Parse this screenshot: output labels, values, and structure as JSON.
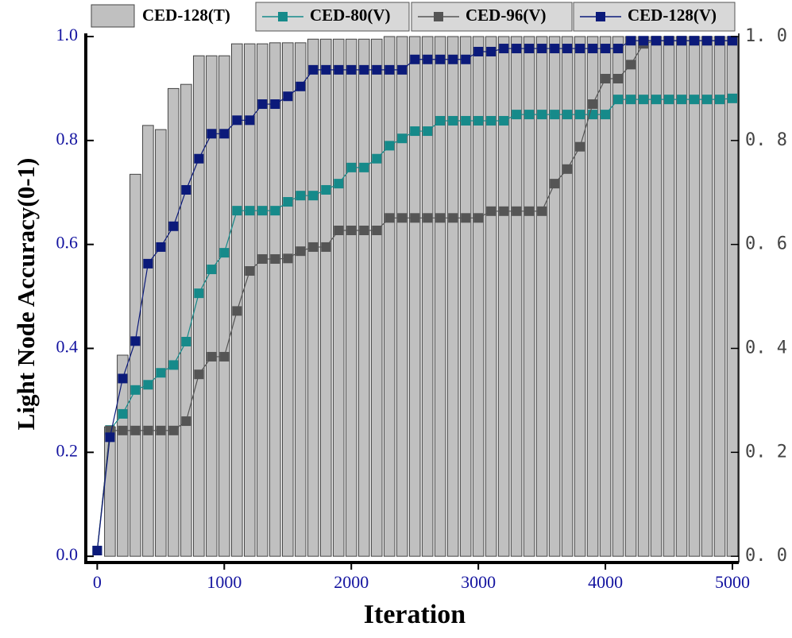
{
  "chart_data": {
    "type": "combo",
    "xlabel": "Iteration",
    "ylabel": "Light Node Accuracy(0-1)",
    "x": [
      0,
      100,
      200,
      300,
      400,
      500,
      600,
      700,
      800,
      900,
      1000,
      1100,
      1200,
      1300,
      1400,
      1500,
      1600,
      1700,
      1800,
      1900,
      2000,
      2100,
      2200,
      2300,
      2400,
      2500,
      2600,
      2700,
      2800,
      2900,
      3000,
      3100,
      3200,
      3300,
      3400,
      3500,
      3600,
      3700,
      3800,
      3900,
      4000,
      4100,
      4200,
      4300,
      4400,
      4500,
      4600,
      4700,
      4800,
      4900,
      5000
    ],
    "xlim": [
      -90,
      5050
    ],
    "xticks": [
      0,
      1000,
      2000,
      3000,
      4000,
      5000
    ],
    "ylim": [
      -0.012,
      1.0
    ],
    "yticks": [
      {
        "value": 0,
        "label": "0.0"
      },
      0.2,
      0.4,
      0.6,
      0.8,
      {
        "value": 1,
        "label": "1.0"
      }
    ],
    "y2lim": [
      -0.012,
      1.0
    ],
    "y2ticks": [
      {
        "value": 0,
        "label": "0. 0"
      },
      {
        "value": 0.2,
        "label": "0. 2"
      },
      {
        "value": 0.4,
        "label": "0. 4"
      },
      {
        "value": 0.6,
        "label": "0. 6"
      },
      {
        "value": 0.8,
        "label": "0. 8"
      },
      {
        "value": 1,
        "label": "1. 0"
      }
    ],
    "series": [
      {
        "name": "CED-128(T)",
        "type": "bar",
        "color": "#c0c0c0",
        "values": [
          null,
          0.249,
          0.387,
          0.735,
          0.829,
          0.821,
          0.9,
          0.908,
          0.963,
          0.963,
          0.963,
          0.986,
          0.986,
          0.986,
          0.988,
          0.988,
          0.988,
          0.995,
          0.995,
          0.995,
          0.995,
          0.995,
          0.995,
          1,
          1,
          1,
          1,
          1,
          1,
          1,
          1,
          1,
          1,
          1,
          1,
          1,
          1,
          1,
          1,
          1,
          1,
          1,
          1,
          1,
          1,
          1,
          1,
          1,
          1,
          1,
          1
        ]
      },
      {
        "name": "CED-80(V)",
        "type": "line",
        "color": "#168a8a",
        "values": [
          0.011,
          0.243,
          0.274,
          0.32,
          0.33,
          0.353,
          0.368,
          0.413,
          0.506,
          0.552,
          0.584,
          0.665,
          0.665,
          0.665,
          0.665,
          0.682,
          0.694,
          0.694,
          0.705,
          0.717,
          0.748,
          0.748,
          0.765,
          0.79,
          0.804,
          0.818,
          0.818,
          0.838,
          0.838,
          0.838,
          0.838,
          0.838,
          0.838,
          0.85,
          0.85,
          0.85,
          0.85,
          0.85,
          0.85,
          0.85,
          0.85,
          0.879,
          0.879,
          0.879,
          0.879,
          0.879,
          0.879,
          0.879,
          0.879,
          0.879,
          0.881
        ]
      },
      {
        "name": "CED-96(V)",
        "type": "line",
        "color": "#555555",
        "values": [
          0.011,
          0.242,
          0.242,
          0.242,
          0.242,
          0.242,
          0.242,
          0.26,
          0.35,
          0.384,
          0.384,
          0.472,
          0.549,
          0.572,
          0.572,
          0.573,
          0.587,
          0.595,
          0.595,
          0.627,
          0.627,
          0.627,
          0.627,
          0.651,
          0.651,
          0.651,
          0.651,
          0.651,
          0.651,
          0.651,
          0.651,
          0.664,
          0.664,
          0.664,
          0.664,
          0.664,
          0.717,
          0.745,
          0.788,
          0.87,
          0.919,
          0.919,
          0.946,
          0.986,
          0.992,
          0.992,
          0.992,
          0.992,
          0.992,
          0.992,
          0.992
        ]
      },
      {
        "name": "CED-128(V)",
        "type": "line",
        "color": "#0b1a7a",
        "values": [
          0.011,
          0.229,
          0.342,
          0.414,
          0.563,
          0.595,
          0.635,
          0.705,
          0.765,
          0.813,
          0.813,
          0.839,
          0.839,
          0.87,
          0.87,
          0.885,
          0.904,
          0.936,
          0.936,
          0.936,
          0.936,
          0.936,
          0.936,
          0.936,
          0.936,
          0.956,
          0.956,
          0.956,
          0.956,
          0.956,
          0.971,
          0.971,
          0.977,
          0.977,
          0.977,
          0.977,
          0.977,
          0.977,
          0.977,
          0.977,
          0.977,
          0.977,
          0.992,
          0.992,
          0.992,
          0.992,
          0.992,
          0.992,
          0.992,
          0.992,
          0.992
        ]
      }
    ]
  }
}
